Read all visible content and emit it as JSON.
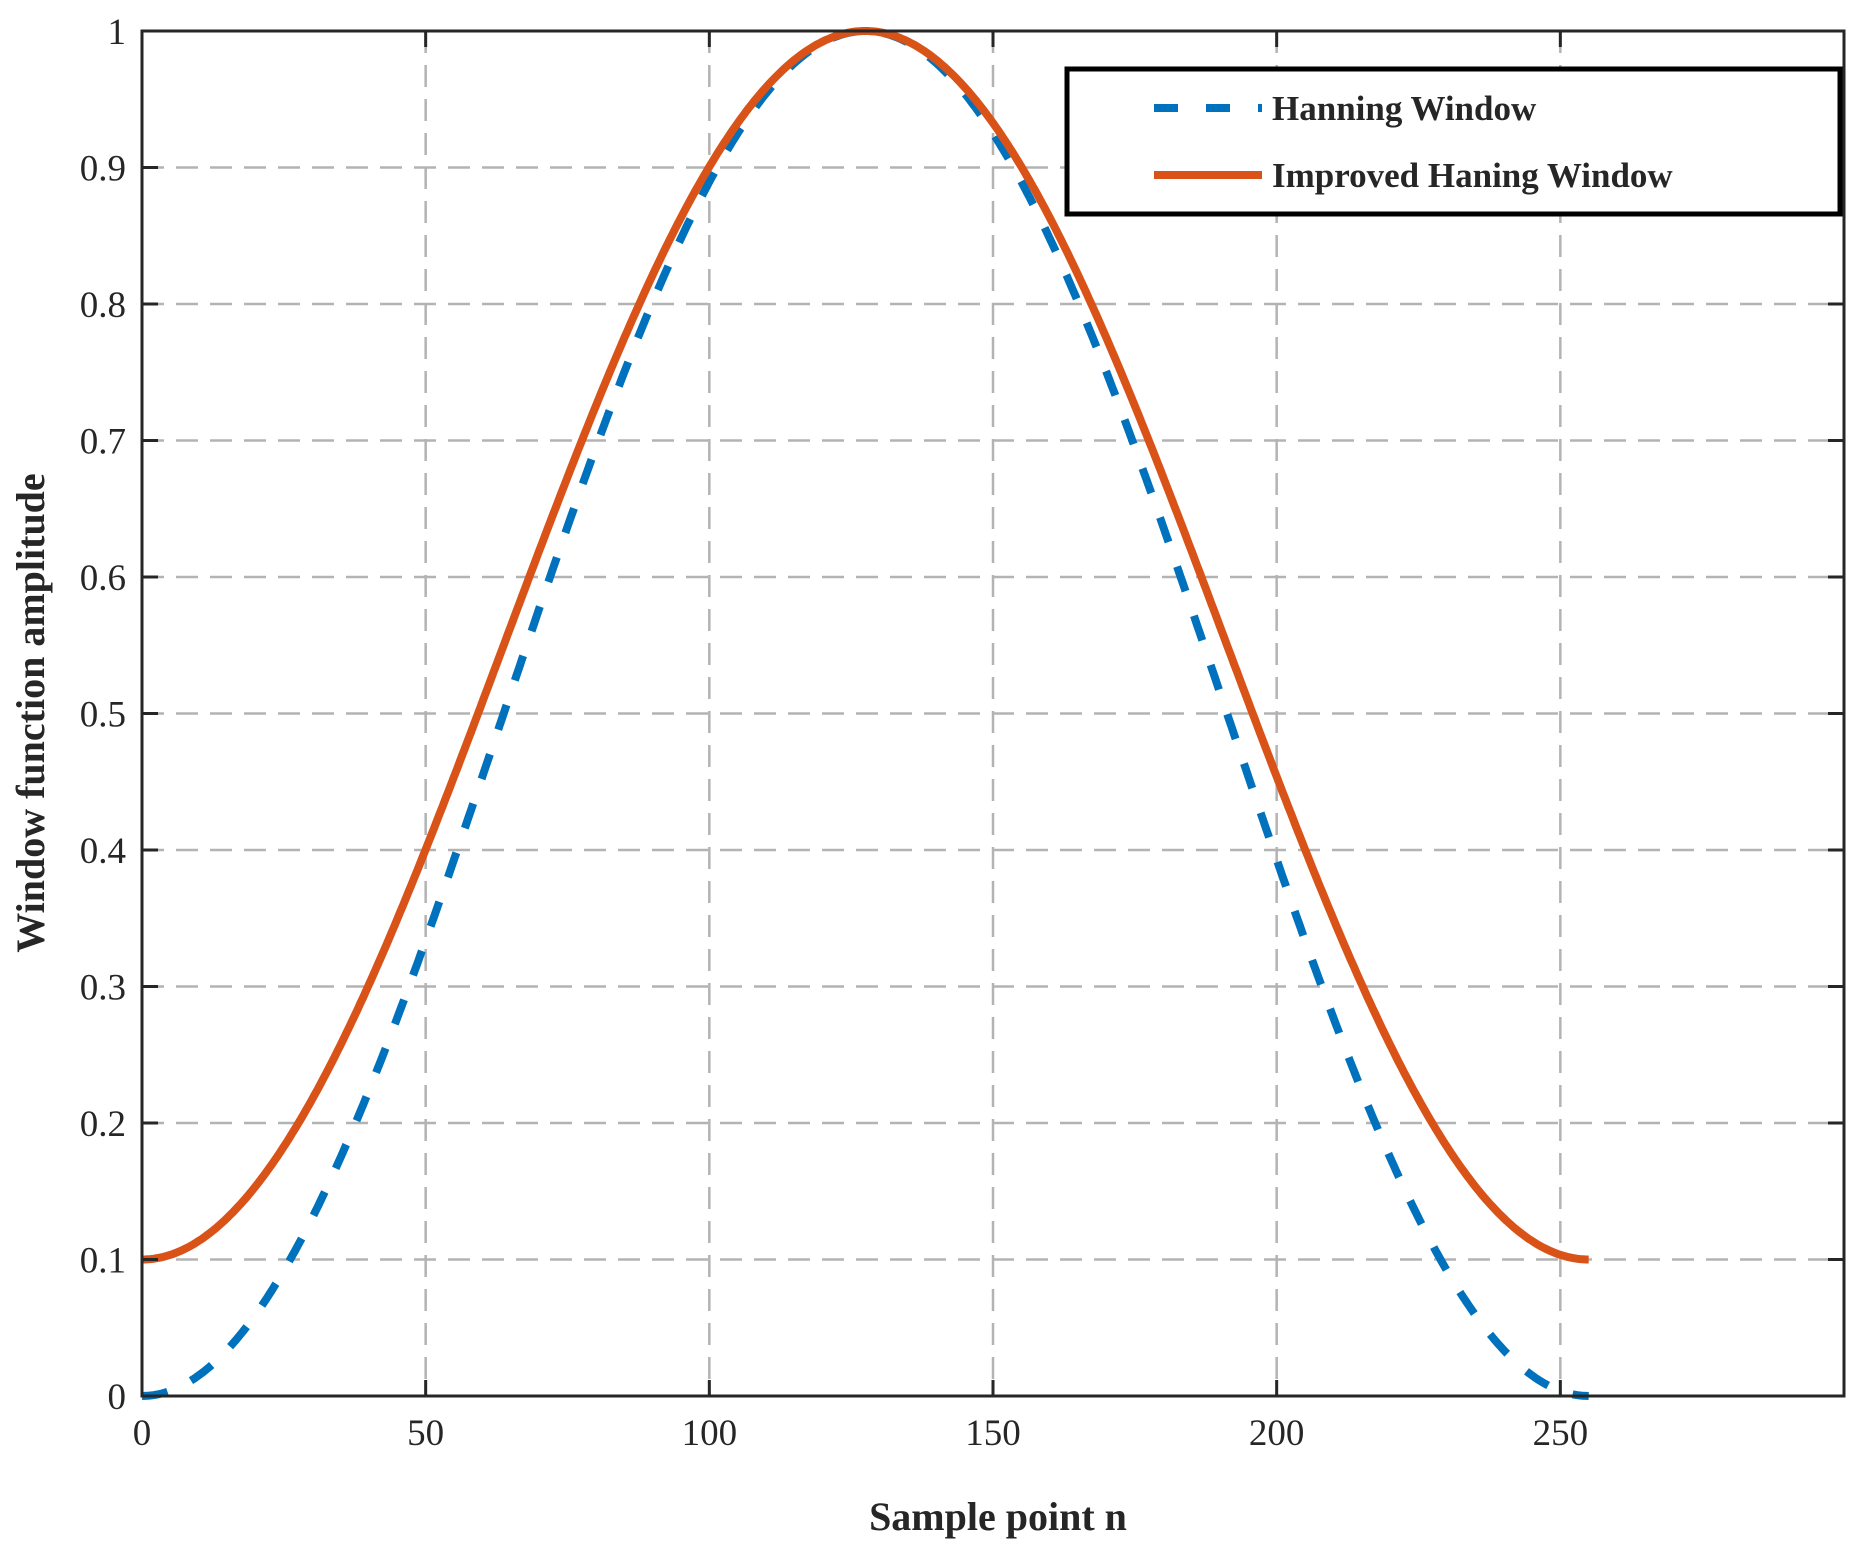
{
  "chart_data": {
    "type": "line",
    "title": "",
    "xlabel": "Sample point n",
    "ylabel": "Window function amplitude",
    "xlim": [
      0,
      300
    ],
    "ylim": [
      0,
      1
    ],
    "xticks": [
      0,
      50,
      100,
      150,
      200,
      250
    ],
    "xtick_labels": [
      "0",
      "50",
      "100",
      "150",
      "200",
      "250"
    ],
    "yticks": [
      0,
      0.1,
      0.2,
      0.3,
      0.4,
      0.5,
      0.6,
      0.7,
      0.8,
      0.9,
      1
    ],
    "ytick_labels": [
      "0",
      "0.1",
      "0.2",
      "0.3",
      "0.4",
      "0.5",
      "0.6",
      "0.7",
      "0.8",
      "0.9",
      "1"
    ],
    "grid": true,
    "legend_position": "upper right",
    "x": [
      0,
      16,
      32,
      48,
      64,
      80,
      96,
      112,
      127.5,
      143,
      159,
      175,
      191,
      207,
      223,
      239,
      255
    ],
    "series": [
      {
        "name": "Hanning Window",
        "style": "dashed",
        "color": "#0072BD",
        "formula": "0.5 - 0.5*cos(2*pi*n/255)",
        "values": [
          0,
          0.038,
          0.146,
          0.309,
          0.501,
          0.689,
          0.849,
          0.962,
          1.0,
          0.962,
          0.849,
          0.689,
          0.501,
          0.309,
          0.146,
          0.038,
          0
        ]
      },
      {
        "name": "Improved Haning Window",
        "style": "solid",
        "color": "#D95319",
        "formula": "0.55 - 0.45*cos(2*pi*n/255)",
        "values": [
          0.1,
          0.134,
          0.231,
          0.378,
          0.551,
          0.72,
          0.864,
          0.966,
          1.0,
          0.966,
          0.864,
          0.72,
          0.551,
          0.378,
          0.231,
          0.134,
          0.1
        ]
      }
    ]
  },
  "legend": {
    "items": [
      {
        "label": "Hanning Window",
        "color": "#0072BD",
        "style": "dashed"
      },
      {
        "label": "Improved Haning Window",
        "color": "#D95319",
        "style": "solid"
      }
    ]
  },
  "colors": {
    "axis": "#262626",
    "grid": "#b3b3b3",
    "hanning": "#0072BD",
    "improved": "#D95319"
  }
}
